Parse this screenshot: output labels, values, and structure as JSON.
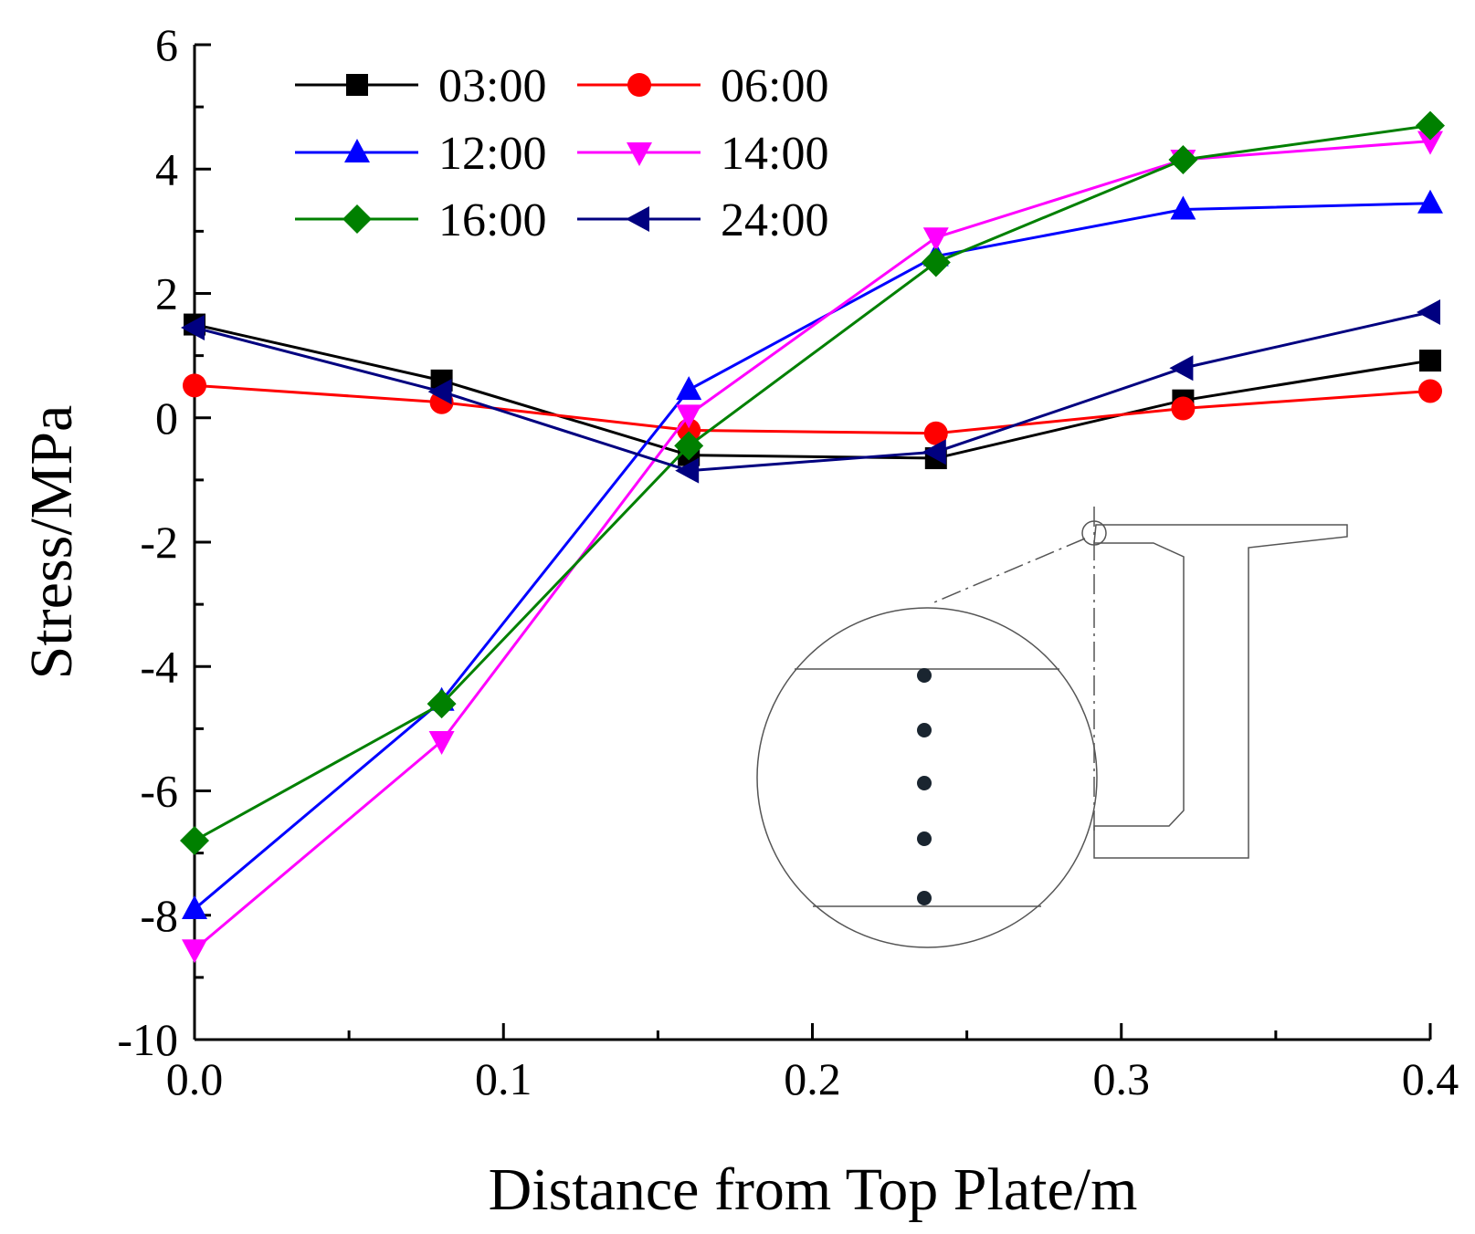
{
  "chart_data": {
    "type": "line",
    "xlabel": "Distance from Top Plate/m",
    "ylabel": "Stress/MPa",
    "xlim": [
      0,
      0.4
    ],
    "ylim": [
      -10,
      6
    ],
    "x_ticks": [
      "0.0",
      "0.1",
      "0.2",
      "0.3",
      "0.4"
    ],
    "y_ticks": [
      "-10",
      "-8",
      "-6",
      "-4",
      "-2",
      "0",
      "2",
      "4",
      "6"
    ],
    "grid": false,
    "legend_position": "top-left",
    "x": [
      0.0,
      0.08,
      0.16,
      0.24,
      0.32,
      0.4
    ],
    "series": [
      {
        "name": "03:00",
        "color": "#000000",
        "marker": "square",
        "values": [
          1.5,
          0.6,
          -0.6,
          -0.65,
          0.28,
          0.92
        ]
      },
      {
        "name": "06:00",
        "color": "#ff0000",
        "marker": "circle",
        "values": [
          0.52,
          0.25,
          -0.2,
          -0.25,
          0.15,
          0.43
        ]
      },
      {
        "name": "12:00",
        "color": "#0000ff",
        "marker": "triangle-up",
        "values": [
          -7.9,
          -4.55,
          0.45,
          2.6,
          3.35,
          3.45
        ]
      },
      {
        "name": "14:00",
        "color": "#ff00ff",
        "marker": "triangle-down",
        "values": [
          -8.55,
          -5.2,
          0.05,
          2.9,
          4.15,
          4.45
        ]
      },
      {
        "name": "16:00",
        "color": "#008000",
        "marker": "diamond",
        "values": [
          -6.8,
          -4.6,
          -0.45,
          2.5,
          4.15,
          4.7
        ]
      },
      {
        "name": "24:00",
        "color": "#000080",
        "marker": "triangle-left",
        "values": [
          1.45,
          0.42,
          -0.85,
          -0.55,
          0.8,
          1.7
        ]
      }
    ]
  }
}
